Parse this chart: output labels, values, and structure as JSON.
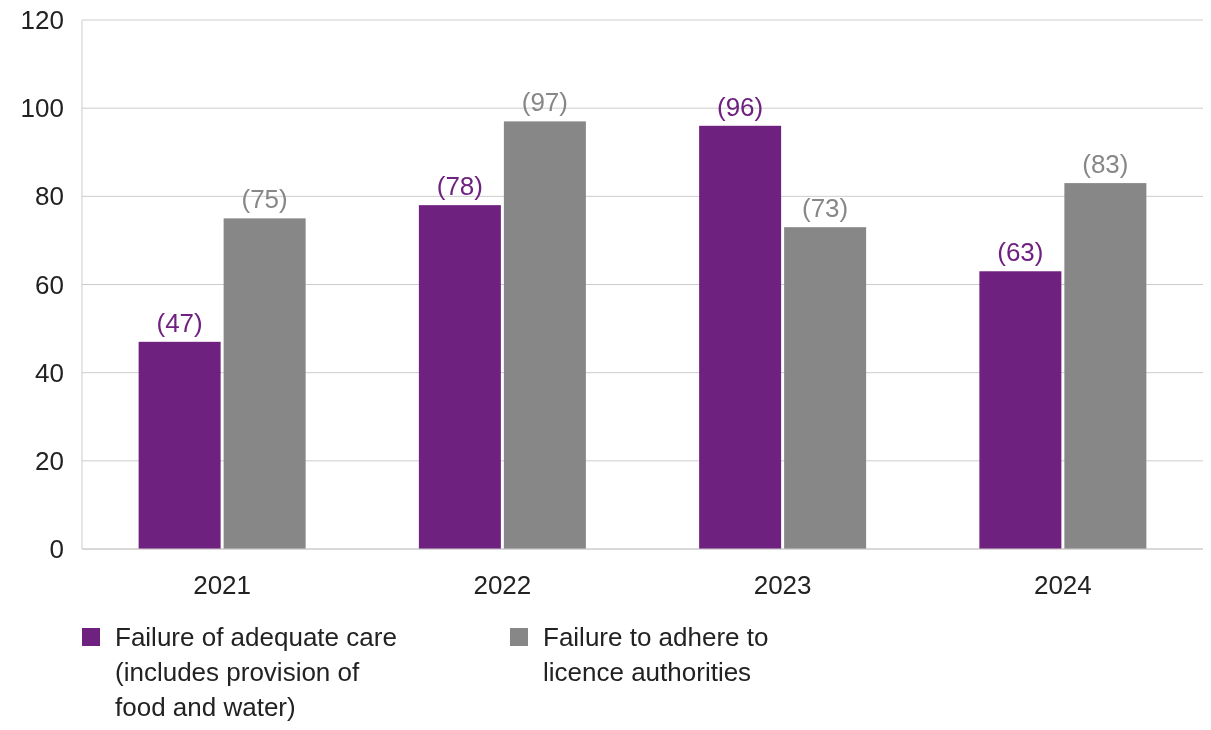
{
  "chart_data": {
    "type": "bar",
    "categories": [
      "2021",
      "2022",
      "2023",
      "2024"
    ],
    "series": [
      {
        "name": "Failure of adequate care (includes provision of food and water)",
        "color": "#6f2180",
        "values": [
          47,
          78,
          96,
          63
        ],
        "value_labels": [
          "(47)",
          "(78)",
          "(96)",
          "(63)"
        ]
      },
      {
        "name": "Failure to adhere to licence authorities",
        "color": "#878787",
        "values": [
          75,
          97,
          73,
          83
        ],
        "value_labels": [
          "(75)",
          "(97)",
          "(73)",
          "(83)"
        ]
      }
    ],
    "ylim": [
      0,
      120
    ],
    "yticks": [
      0,
      20,
      40,
      60,
      80,
      100,
      120
    ],
    "grid": "y",
    "legend": "bottom"
  }
}
